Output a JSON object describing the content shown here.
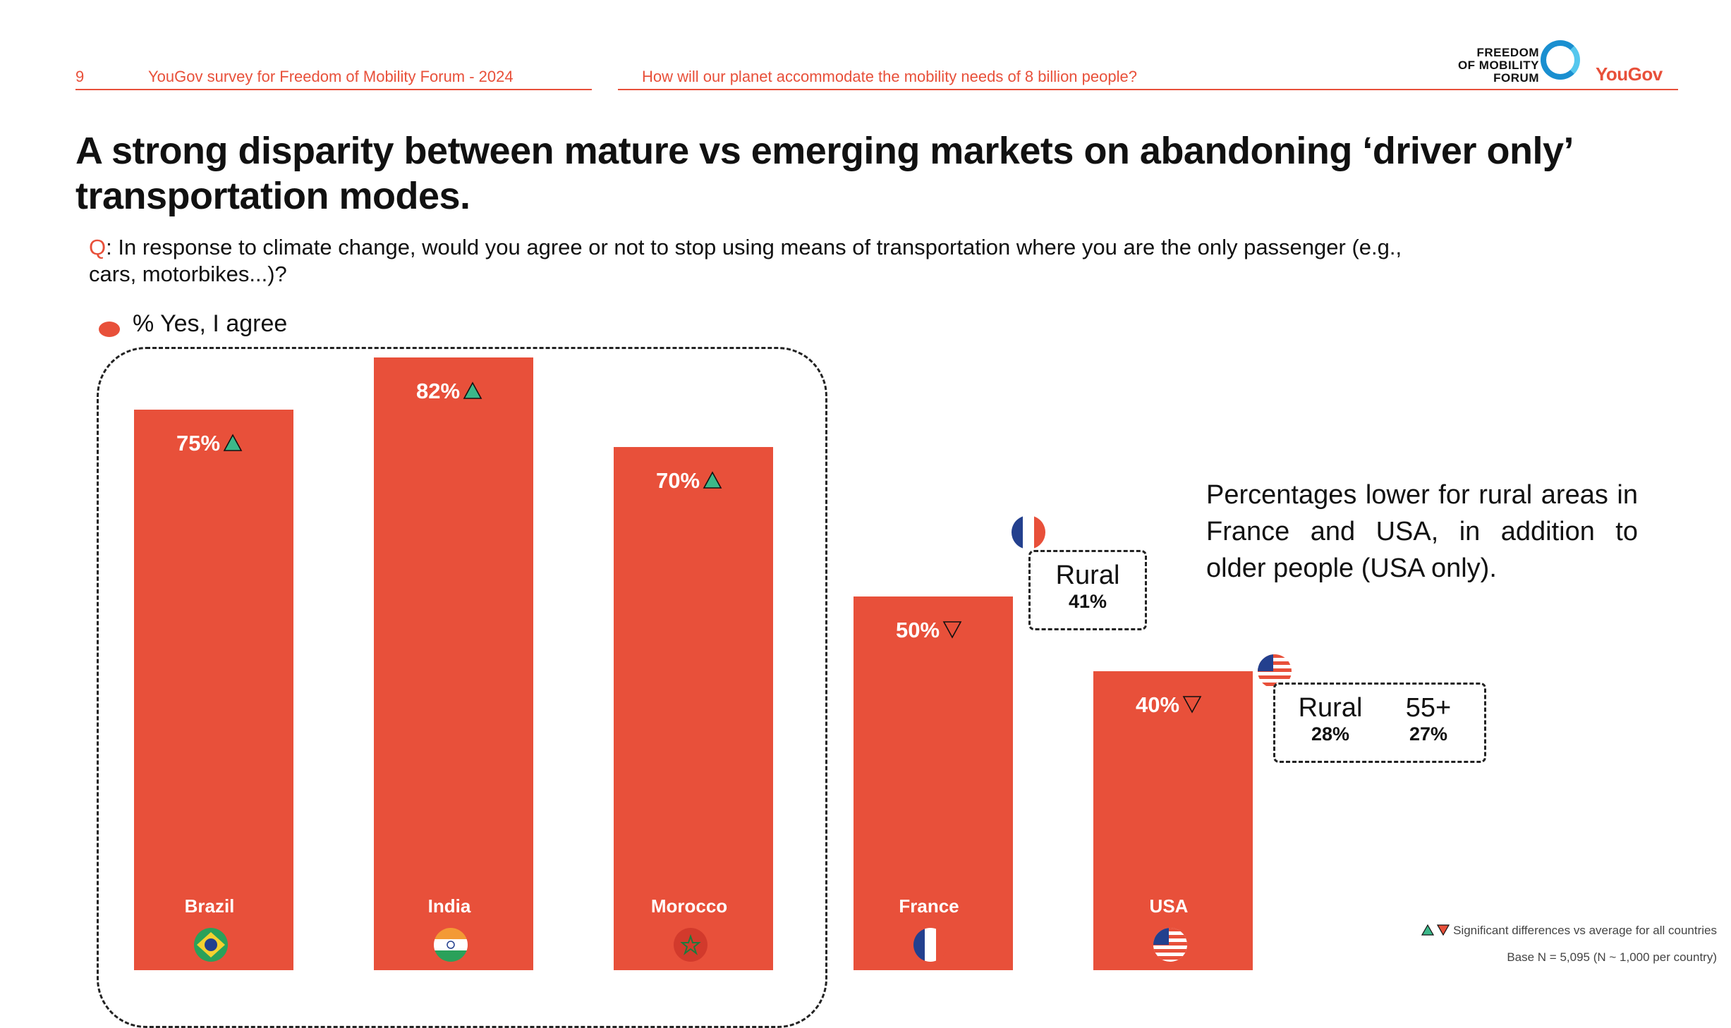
{
  "header": {
    "page_number": "9",
    "survey": "YouGov survey for Freedom of Mobility Forum - 2024",
    "question_title": "How will our planet accommodate the mobility needs of 8 billion people?"
  },
  "brand": {
    "fmf_line1": "FREEDOM",
    "fmf_line2": "OF MOBILITY",
    "fmf_line3": "FORUM",
    "yougov": "YouGov"
  },
  "title": "A strong disparity between mature vs emerging markets on abandoning ‘driver only’ transportation modes.",
  "question": {
    "prefix": "Q",
    "text": ": In response to climate change, would you agree or not to stop using means of transportation where you are the only passenger (e.g., cars, motorbikes...)?"
  },
  "legend": {
    "label": "% Yes, I agree",
    "color": "#e8503a"
  },
  "chart_data": {
    "type": "bar",
    "title": "",
    "ylabel": "% Yes, I agree",
    "ylim": [
      0,
      100
    ],
    "categories": [
      "Brazil",
      "India",
      "Morocco",
      "France",
      "USA"
    ],
    "values": [
      75,
      82,
      70,
      50,
      40
    ],
    "value_labels": [
      "75%",
      "82%",
      "70%",
      "50%",
      "40%"
    ],
    "significance": [
      "up",
      "up",
      "up",
      "down",
      "down"
    ],
    "flag_icons": [
      "brazil-flag-icon",
      "india-flag-icon",
      "morocco-flag-icon",
      "france-flag-icon",
      "usa-flag-icon"
    ],
    "group_annotation": "emerging markets"
  },
  "callouts": {
    "france": {
      "label": "Rural",
      "value": "41%"
    },
    "usa": [
      {
        "label": "Rural",
        "value": "28%"
      },
      {
        "label": "55+",
        "value": "27%"
      }
    ]
  },
  "note": "Percentages lower for rural areas in France and USA, in addition to older people (USA only).",
  "footer": {
    "significance": "Significant differences vs average for all countries",
    "base": "Base N = 5,095 (N ~ 1,000 per country)"
  },
  "colors": {
    "accent": "#e8503a",
    "up_triangle": "#3cb88a",
    "down_triangle": "#e8503a"
  }
}
